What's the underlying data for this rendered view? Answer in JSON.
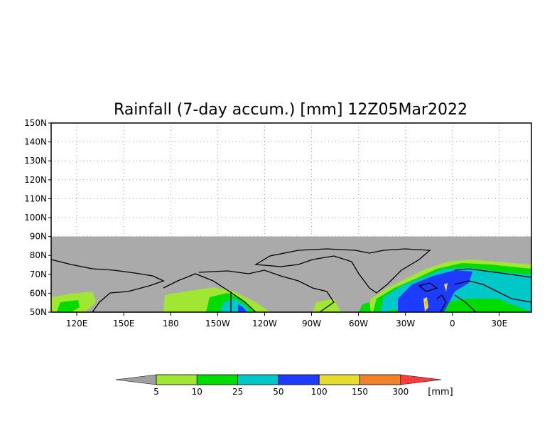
{
  "chart_data": {
    "type": "heatmap",
    "title": "Rainfall (7-day accum.) [mm] 12Z05Mar2022",
    "lat_ticks": [
      {
        "value": 150,
        "label": "150N"
      },
      {
        "value": 140,
        "label": "140N"
      },
      {
        "value": 130,
        "label": "130N"
      },
      {
        "value": 120,
        "label": "120N"
      },
      {
        "value": 110,
        "label": "110N"
      },
      {
        "value": 100,
        "label": "100N"
      },
      {
        "value": 90,
        "label": "90N"
      },
      {
        "value": 80,
        "label": "80N"
      },
      {
        "value": 70,
        "label": "70N"
      },
      {
        "value": 60,
        "label": "60N"
      },
      {
        "value": 50,
        "label": "50N"
      }
    ],
    "lon_ticks": [
      {
        "value": 120,
        "label": "120E"
      },
      {
        "value": 150,
        "label": "150E"
      },
      {
        "value": 180,
        "label": "180"
      },
      {
        "value": 210,
        "label": "150W"
      },
      {
        "value": 240,
        "label": "120W"
      },
      {
        "value": 270,
        "label": "90W"
      },
      {
        "value": 300,
        "label": "60W"
      },
      {
        "value": 330,
        "label": "30W"
      },
      {
        "value": 360,
        "label": "0"
      },
      {
        "value": 390,
        "label": "30E"
      }
    ],
    "lat_range": [
      50,
      150
    ],
    "lon_range": [
      103.6,
      410.5
    ],
    "data_lat_max": 90,
    "grid": true,
    "colorbar": {
      "unit": "[mm]",
      "levels": [
        "5",
        "10",
        "25",
        "50",
        "100",
        "150",
        "300"
      ],
      "colors": [
        "#a0a0a0",
        "#a0e632",
        "#00dc00",
        "#00c8c8",
        "#1e3cff",
        "#e6dc32",
        "#f08228",
        "#fa3c3c"
      ]
    },
    "no_data_color": "#aaaaaa"
  }
}
